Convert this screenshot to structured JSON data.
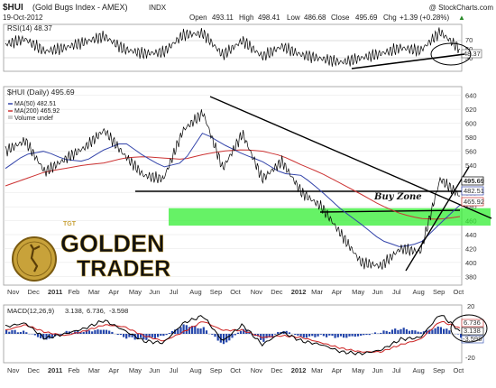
{
  "header": {
    "symbol": "$HUI",
    "name": "(Gold Bugs Index - AMEX)",
    "exchange": "INDX",
    "watermark": "@ StockCharts.com",
    "date": "19-Oct-2012",
    "quote": {
      "open_label": "Open",
      "open": "493.11",
      "high_label": "High",
      "high": "498.41",
      "low_label": "Low",
      "low": "486.68",
      "close_label": "Close",
      "close": "495.69",
      "chg_label": "Chg",
      "chg": "+1.39 (+0.28%)",
      "chg_arrow": "▲"
    }
  },
  "colors": {
    "price": "#000000",
    "ma50": "#3344aa",
    "ma200": "#cc3333",
    "buy_zone": "#33ee33",
    "macd_line": "#000000",
    "macd_signal": "#cc2222",
    "histogram": "#2244aa",
    "gt_gold": "#c8a23a",
    "gt_black": "#111111"
  },
  "rsi_panel": {
    "legend": "RSI(14) 48.37",
    "y_ticks": [
      "70",
      "50",
      "30"
    ],
    "value_box": "48.37"
  },
  "price_panel": {
    "legend_title": "$HUI (Daily) 495.69",
    "legend_ma50": "MA(50) 482.51",
    "legend_ma200": "MA(200) 465.92",
    "legend_volume": "Volume undef",
    "y_ticks": [
      "640",
      "620",
      "600",
      "580",
      "560",
      "540",
      "520",
      "500",
      "480",
      "460",
      "440",
      "420",
      "400",
      "380"
    ],
    "value_boxes": [
      "495.69",
      "482.51",
      "465.92"
    ],
    "annotation": "Buy Zone"
  },
  "macd_panel": {
    "legend_name": "MACD(12,26,9)",
    "legend_macd": "3.138,",
    "legend_signal": "6.736,",
    "legend_hist": "-3.598",
    "y_ticks": [
      "20",
      "0",
      "-20"
    ],
    "value_boxes": [
      "6.736",
      "3.138",
      "-3.598"
    ]
  },
  "x_axis": {
    "labels": [
      "Nov",
      "Dec",
      "2011",
      "Feb",
      "Mar",
      "Apr",
      "May",
      "Jun",
      "Jul",
      "Aug",
      "Sep",
      "Oct",
      "Nov",
      "Dec",
      "2012",
      "Mar",
      "Apr",
      "May",
      "Jun",
      "Jul",
      "Aug",
      "Sep",
      "Oct"
    ]
  },
  "logo": {
    "brand_small": "TGT",
    "word1": "GOLDEN",
    "word2": "TRADER"
  },
  "chart_data": {
    "type": "line",
    "title": "$HUI (Gold Bugs Index - AMEX)",
    "x": [
      "Nov 2010",
      "Dec 2010",
      "Jan 2011",
      "Feb 2011",
      "Mar 2011",
      "Apr 2011",
      "May 2011",
      "Jun 2011",
      "Jul 2011",
      "Aug 2011",
      "Sep 2011",
      "Oct 2011",
      "Nov 2011",
      "Dec 2011",
      "Jan 2012",
      "Feb 2012",
      "Mar 2012",
      "Apr 2012",
      "May 2012",
      "Jun 2012",
      "Jul 2012",
      "Aug 2012",
      "Sep 2012",
      "Oct 2012"
    ],
    "series": [
      {
        "name": "$HUI (Daily)",
        "values": [
          560,
          575,
          530,
          548,
          565,
          590,
          555,
          525,
          520,
          590,
          615,
          535,
          585,
          520,
          545,
          500,
          480,
          440,
          400,
          395,
          420,
          415,
          520,
          495.69
        ]
      },
      {
        "name": "MA(50)",
        "values": [
          535,
          555,
          560,
          548,
          545,
          562,
          573,
          553,
          537,
          544,
          587,
          570,
          556,
          545,
          528,
          525,
          502,
          476,
          455,
          432,
          422,
          428,
          456,
          482.51
        ]
      },
      {
        "name": "MA(200)",
        "values": [
          510,
          520,
          530,
          535,
          540,
          543,
          550,
          552,
          550,
          548,
          555,
          560,
          562,
          560,
          553,
          540,
          528,
          513,
          498,
          482,
          470,
          463,
          462,
          465.92
        ]
      }
    ],
    "ylim": [
      370,
      650
    ],
    "y_ticks": [
      380,
      400,
      420,
      440,
      460,
      480,
      500,
      520,
      540,
      560,
      580,
      600,
      620,
      640
    ],
    "annotations": [
      "Buy Zone"
    ],
    "buy_zone_range": [
      453,
      478
    ],
    "rsi": {
      "name": "RSI(14)",
      "last": 48.37,
      "ylim": [
        20,
        80
      ],
      "y_ticks": [
        30,
        50,
        70
      ],
      "values": [
        55,
        62,
        45,
        50,
        58,
        66,
        48,
        42,
        44,
        68,
        70,
        40,
        60,
        38,
        52,
        40,
        35,
        30,
        36,
        42,
        50,
        46,
        72,
        48.37
      ]
    },
    "macd": {
      "name": "MACD(12,26,9)",
      "macd": 3.138,
      "signal": 6.736,
      "histogram": -3.598,
      "ylim": [
        -30,
        30
      ],
      "y_ticks": [
        -20,
        0,
        20
      ],
      "macd_values": [
        8,
        12,
        -5,
        0,
        6,
        15,
        4,
        -8,
        -10,
        12,
        20,
        -8,
        10,
        -12,
        2,
        -8,
        -12,
        -20,
        -22,
        -18,
        -6,
        -4,
        22,
        3.138
      ],
      "signal_values": [
        4,
        10,
        2,
        -2,
        3,
        10,
        8,
        -2,
        -8,
        2,
        14,
        4,
        4,
        -4,
        -2,
        -4,
        -10,
        -16,
        -20,
        -20,
        -12,
        -6,
        14,
        6.736
      ]
    }
  }
}
